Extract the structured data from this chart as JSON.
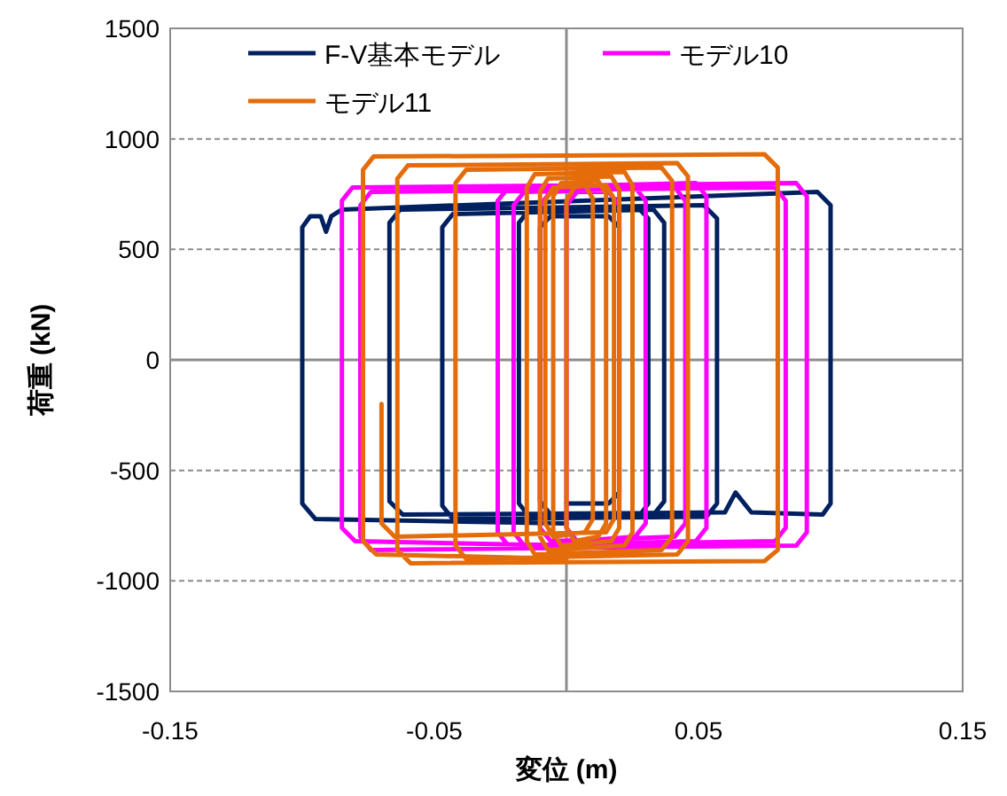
{
  "chart_data": {
    "type": "line",
    "xlabel": "変位 (m)",
    "ylabel": "荷重 (kN)",
    "xlim": [
      -0.15,
      0.15
    ],
    "xticks": [
      -0.15,
      -0.05,
      0.05,
      0.15
    ],
    "ylim": [
      -1500,
      1500
    ],
    "yticks": [
      -1500,
      -1000,
      -500,
      0,
      500,
      1000,
      1500
    ],
    "grid": "y",
    "legend": "top",
    "marker": "none",
    "line_style": "solid",
    "series": [
      {
        "name": "F-V基本モデル",
        "color": "#002060",
        "x": [
          0,
          -0.095,
          -0.1,
          -0.1,
          -0.097,
          -0.093,
          -0.091,
          -0.089,
          -0.085,
          0.095,
          0.1,
          0.1,
          0.097,
          0.07,
          0.064,
          0.06,
          -0.062,
          -0.067,
          -0.067,
          -0.063,
          0.052,
          0.057,
          0.057,
          0.053,
          -0.043,
          -0.047,
          -0.047,
          -0.043,
          0.033,
          0.037,
          0.037,
          0.033,
          -0.014,
          -0.018,
          -0.018,
          -0.014,
          0.027,
          0.031,
          0.031,
          0.028,
          -0.006,
          -0.01,
          -0.01,
          -0.006,
          0.016,
          0.02,
          0.02,
          0.016,
          0.0
        ],
        "values": [
          -740,
          -720,
          -650,
          600,
          650,
          650,
          580,
          650,
          680,
          760,
          700,
          -650,
          -700,
          -690,
          -600,
          -690,
          -700,
          -640,
          620,
          680,
          700,
          640,
          -650,
          -710,
          -720,
          -660,
          600,
          660,
          680,
          620,
          -640,
          -700,
          -710,
          -650,
          620,
          680,
          690,
          640,
          -650,
          -700,
          -700,
          -640,
          600,
          650,
          650,
          600,
          -600,
          -650,
          -650
        ]
      },
      {
        "name": "モデル10",
        "color": "#ff00ff",
        "x": [
          0.0,
          -0.08,
          -0.085,
          -0.085,
          -0.081,
          0.087,
          0.091,
          0.091,
          0.087,
          -0.074,
          -0.078,
          -0.078,
          -0.074,
          0.079,
          0.083,
          0.083,
          0.079,
          -0.022,
          -0.026,
          -0.026,
          -0.022,
          0.049,
          0.053,
          0.053,
          0.049,
          -0.016,
          -0.02,
          -0.02,
          -0.016,
          0.041,
          0.045,
          0.045,
          0.041,
          -0.006,
          -0.01,
          -0.01,
          -0.006,
          0.026,
          0.03,
          0.03,
          0.026,
          0.004,
          0.0,
          0.0,
          0.004,
          0.016,
          0.02,
          0.02
        ],
        "values": [
          -840,
          -820,
          -760,
          720,
          780,
          800,
          740,
          -780,
          -840,
          -860,
          -800,
          700,
          760,
          780,
          720,
          -760,
          -820,
          -840,
          -780,
          720,
          780,
          800,
          740,
          -760,
          -820,
          -840,
          -780,
          700,
          760,
          780,
          720,
          -740,
          -800,
          -820,
          -760,
          700,
          760,
          780,
          720,
          -740,
          -800,
          -820,
          -760,
          700,
          760,
          760,
          700,
          -700
        ]
      },
      {
        "name": "モデル11",
        "color": "#e46c0a",
        "x": [
          0.0,
          -0.072,
          -0.077,
          -0.077,
          -0.073,
          0.075,
          0.08,
          0.08,
          0.075,
          -0.059,
          -0.064,
          -0.064,
          -0.06,
          0.042,
          0.046,
          0.046,
          0.042,
          -0.038,
          -0.042,
          -0.042,
          -0.038,
          0.036,
          0.04,
          0.04,
          0.036,
          -0.012,
          -0.015,
          -0.015,
          -0.012,
          0.022,
          0.025,
          0.025,
          0.022,
          -0.007,
          -0.01,
          -0.01,
          -0.007,
          0.017,
          0.02,
          0.02,
          0.017,
          -0.002,
          -0.005,
          -0.005,
          -0.002,
          0.012,
          0.015,
          0.015,
          0.012,
          0.003,
          0.0,
          0.0,
          0.003,
          0.007,
          0.01,
          0.01,
          0.007,
          -0.005,
          -0.008,
          -0.008,
          -0.005,
          0.015,
          0.018,
          0.018,
          0.015,
          -0.065,
          -0.07,
          -0.07
        ],
        "values": [
          -900,
          -880,
          -820,
          860,
          920,
          930,
          870,
          -860,
          -910,
          -920,
          -860,
          820,
          880,
          890,
          830,
          -820,
          -880,
          -900,
          -840,
          800,
          860,
          870,
          810,
          -800,
          -860,
          -880,
          -820,
          780,
          840,
          850,
          790,
          -780,
          -840,
          -860,
          -800,
          760,
          820,
          830,
          770,
          -760,
          -820,
          -840,
          -780,
          740,
          800,
          810,
          750,
          -740,
          -800,
          -820,
          -760,
          720,
          780,
          790,
          730,
          -720,
          -780,
          -800,
          -740,
          720,
          780,
          790,
          730,
          -720,
          -780,
          -800,
          -740,
          -200
        ]
      }
    ]
  }
}
